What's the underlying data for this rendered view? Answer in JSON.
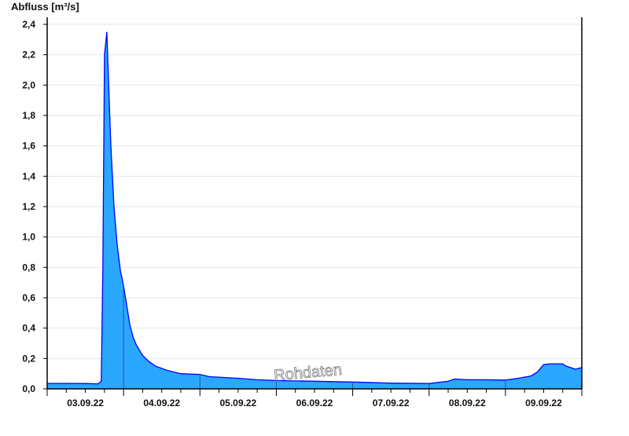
{
  "chart_data": {
    "type": "area",
    "ylabel": "Abfluss [m³/s]",
    "xlabel": "",
    "ylim": [
      0,
      2.4
    ],
    "xlim": [
      "03.09.22 00:00",
      "10.09.22 00:00"
    ],
    "yticks": [
      "0,0",
      "0,2",
      "0,4",
      "0,6",
      "0,8",
      "1,0",
      "1,2",
      "1,4",
      "1,6",
      "1,8",
      "2,0",
      "2,2",
      "2,4"
    ],
    "xtick_labels": [
      "03.09.22",
      "04.09.22",
      "05.09.22",
      "06.09.22",
      "07.09.22",
      "08.09.22",
      "09.09.22"
    ],
    "grid": "horizontal",
    "watermark": "Rohdaten",
    "colors": {
      "fill": "#2aa7ff",
      "line": "#0000ff",
      "grid": "#e6e6e6"
    },
    "points": [
      [
        "03.09.22 00:00",
        0.036
      ],
      [
        "03.09.22 12:00",
        0.035
      ],
      [
        "03.09.22 16:00",
        0.033
      ],
      [
        "03.09.22 17:00",
        0.05
      ],
      [
        "03.09.22 17:30",
        0.8
      ],
      [
        "03.09.22 18:00",
        2.2
      ],
      [
        "03.09.22 18:45",
        2.35
      ],
      [
        "03.09.22 19:30",
        1.9
      ],
      [
        "03.09.22 20:00",
        1.6
      ],
      [
        "03.09.22 21:00",
        1.2
      ],
      [
        "03.09.22 22:00",
        0.95
      ],
      [
        "03.09.22 23:00",
        0.78
      ],
      [
        "04.09.22 00:00",
        0.68
      ],
      [
        "04.09.22 01:00",
        0.55
      ],
      [
        "04.09.22 02:00",
        0.42
      ],
      [
        "04.09.22 03:00",
        0.34
      ],
      [
        "04.09.22 04:00",
        0.29
      ],
      [
        "04.09.22 06:00",
        0.22
      ],
      [
        "04.09.22 08:00",
        0.18
      ],
      [
        "04.09.22 10:00",
        0.15
      ],
      [
        "04.09.22 14:00",
        0.12
      ],
      [
        "04.09.22 18:00",
        0.1
      ],
      [
        "05.09.22 00:00",
        0.095
      ],
      [
        "05.09.22 03:00",
        0.08
      ],
      [
        "05.09.22 12:00",
        0.07
      ],
      [
        "05.09.22 18:00",
        0.06
      ],
      [
        "06.09.22 00:00",
        0.055
      ],
      [
        "06.09.22 12:00",
        0.05
      ],
      [
        "07.09.22 00:00",
        0.045
      ],
      [
        "07.09.22 12:00",
        0.038
      ],
      [
        "08.09.22 00:00",
        0.035
      ],
      [
        "08.09.22 06:00",
        0.05
      ],
      [
        "08.09.22 08:00",
        0.065
      ],
      [
        "08.09.22 12:00",
        0.06
      ],
      [
        "08.09.22 18:00",
        0.06
      ],
      [
        "09.09.22 00:00",
        0.058
      ],
      [
        "09.09.22 04:00",
        0.07
      ],
      [
        "09.09.22 08:00",
        0.085
      ],
      [
        "09.09.22 10:00",
        0.11
      ],
      [
        "09.09.22 12:00",
        0.16
      ],
      [
        "09.09.22 14:00",
        0.165
      ],
      [
        "09.09.22 18:00",
        0.165
      ],
      [
        "09.09.22 19:00",
        0.15
      ],
      [
        "09.09.22 22:00",
        0.13
      ],
      [
        "10.09.22 00:00",
        0.14
      ]
    ]
  }
}
